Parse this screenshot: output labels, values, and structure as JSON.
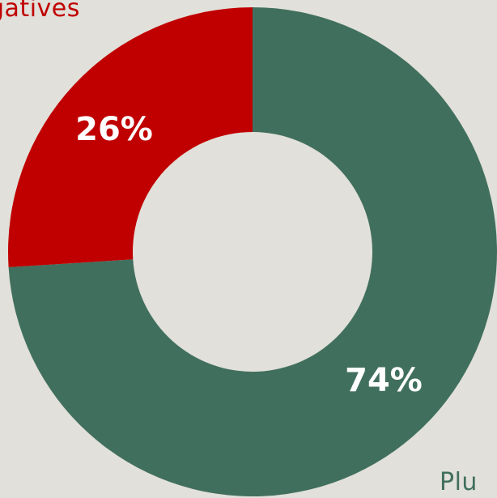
{
  "colors": {
    "background": "#e1e0da",
    "negative": "#c00000",
    "positive": "#416f5e"
  },
  "legend": {
    "negative_label": "gatives",
    "positive_label": "Plu"
  },
  "chart_data": {
    "type": "pie",
    "donut": true,
    "start": "12 o'clock",
    "direction": "clockwise",
    "slices": [
      {
        "label": "Plu",
        "value": 74,
        "display": "74%",
        "color": "#416f5e"
      },
      {
        "label": "gatives",
        "value": 26,
        "display": "26%",
        "color": "#c00000"
      }
    ]
  }
}
